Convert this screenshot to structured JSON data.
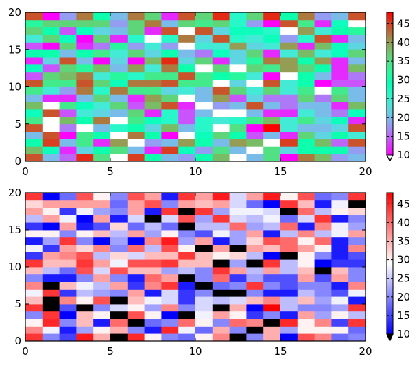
{
  "chart_data": [
    {
      "type": "heatmap",
      "title": "",
      "xlabel": "",
      "ylabel": "",
      "xlim": [
        0,
        20
      ],
      "ylim": [
        0,
        20
      ],
      "xticks": [
        "0",
        "5",
        "10",
        "15",
        "20"
      ],
      "yticks": [
        "0",
        "5",
        "10",
        "15",
        "20"
      ],
      "grid": false,
      "colormap": "rainbow",
      "colorbar_extend": "min",
      "colorbar_under_color": "#ffffff",
      "colorbar_ticks": [
        "10",
        "15",
        "20",
        "25",
        "30",
        "35",
        "40",
        "45"
      ],
      "vmin": 10,
      "vmax": 48,
      "masked_color": "#ffffff",
      "mask_rule": "values below 10 shown as masked",
      "grid_size": [
        20,
        20
      ],
      "z": [
        [
          44,
          20,
          15,
          46,
          35,
          8,
          45,
          30,
          20,
          18,
          30,
          38,
          8,
          20,
          35,
          10,
          42,
          38,
          18,
          20
        ],
        [
          38,
          28,
          12,
          22,
          30,
          35,
          20,
          12,
          45,
          28,
          18,
          35,
          20,
          8,
          35,
          22,
          30,
          30,
          30,
          18
        ],
        [
          30,
          45,
          20,
          34,
          12,
          40,
          8,
          18,
          20,
          40,
          30,
          20,
          40,
          38,
          8,
          45,
          30,
          38,
          15,
          44
        ],
        [
          20,
          44,
          10,
          34,
          30,
          8,
          42,
          30,
          10,
          8,
          28,
          36,
          30,
          14,
          20,
          12,
          36,
          22,
          30,
          24
        ],
        [
          44,
          8,
          16,
          8,
          20,
          26,
          30,
          22,
          38,
          20,
          26,
          8,
          35,
          10,
          48,
          24,
          20,
          20,
          22,
          44
        ],
        [
          34,
          8,
          38,
          30,
          42,
          8,
          34,
          28,
          26,
          14,
          26,
          24,
          26,
          34,
          38,
          24,
          34,
          22,
          28,
          12
        ],
        [
          28,
          44,
          14,
          24,
          22,
          20,
          36,
          12,
          26,
          14,
          20,
          8,
          8,
          20,
          12,
          12,
          24,
          20,
          16,
          28
        ],
        [
          38,
          8,
          34,
          28,
          24,
          36,
          14,
          38,
          44,
          12,
          8,
          18,
          20,
          44,
          20,
          16,
          20,
          20,
          12,
          38
        ],
        [
          20,
          12,
          12,
          20,
          36,
          20,
          12,
          40,
          36,
          8,
          20,
          40,
          14,
          22,
          16,
          16,
          36,
          16,
          36,
          20
        ],
        [
          34,
          24,
          18,
          42,
          26,
          42,
          34,
          34,
          22,
          24,
          20,
          44,
          36,
          24,
          36,
          24,
          34,
          8,
          34,
          20
        ],
        [
          44,
          34,
          34,
          44,
          36,
          28,
          42,
          42,
          44,
          34,
          34,
          8,
          22,
          8,
          44,
          24,
          30,
          10,
          14,
          14
        ],
        [
          14,
          36,
          38,
          42,
          24,
          32,
          26,
          34,
          34,
          44,
          34,
          30,
          32,
          24,
          10,
          8,
          30,
          20,
          12,
          16
        ],
        [
          28,
          14,
          36,
          32,
          38,
          20,
          40,
          24,
          42,
          30,
          8,
          36,
          8,
          36,
          34,
          40,
          36,
          30,
          12,
          38
        ],
        [
          12,
          22,
          44,
          20,
          10,
          22,
          10,
          38,
          46,
          22,
          36,
          12,
          22,
          32,
          42,
          40,
          30,
          40,
          12,
          20
        ],
        [
          30,
          30,
          20,
          30,
          34,
          24,
          36,
          22,
          30,
          20,
          16,
          28,
          22,
          36,
          12,
          24,
          38,
          24,
          28,
          36
        ],
        [
          14,
          10,
          36,
          12,
          16,
          32,
          18,
          24,
          18,
          8,
          24,
          24,
          40,
          22,
          24,
          40,
          12,
          38,
          28,
          22
        ],
        [
          24,
          36,
          28,
          10,
          36,
          12,
          26,
          8,
          26,
          42,
          22,
          44,
          26,
          24,
          28,
          18,
          26,
          44,
          12,
          20
        ],
        [
          36,
          30,
          14,
          28,
          22,
          20,
          36,
          12,
          44,
          8,
          44,
          22,
          28,
          28,
          26,
          8,
          40,
          24,
          30,
          32
        ],
        [
          32,
          36,
          36,
          36,
          36,
          18,
          36,
          42,
          20,
          36,
          34,
          36,
          26,
          18,
          10,
          44,
          34,
          12,
          28,
          8
        ],
        [
          44,
          10,
          18,
          42,
          30,
          20,
          42,
          36,
          12,
          44,
          36,
          46,
          26,
          36,
          46,
          30,
          42,
          18,
          20,
          44
        ]
      ]
    },
    {
      "type": "heatmap",
      "title": "",
      "xlabel": "",
      "ylabel": "",
      "xlim": [
        0,
        20
      ],
      "ylim": [
        0,
        20
      ],
      "xticks": [
        "0",
        "5",
        "10",
        "15",
        "20"
      ],
      "yticks": [
        "0",
        "5",
        "10",
        "15",
        "20"
      ],
      "grid": false,
      "colormap": "bwr",
      "colorbar_extend": "min",
      "colorbar_under_color": "#000000",
      "colorbar_ticks": [
        "10",
        "15",
        "20",
        "25",
        "30",
        "35",
        "40",
        "45"
      ],
      "vmin": 10,
      "vmax": 48,
      "masked_color": "#000000",
      "mask_rule": "same data as upper panel; values below 10 drawn black"
    }
  ]
}
